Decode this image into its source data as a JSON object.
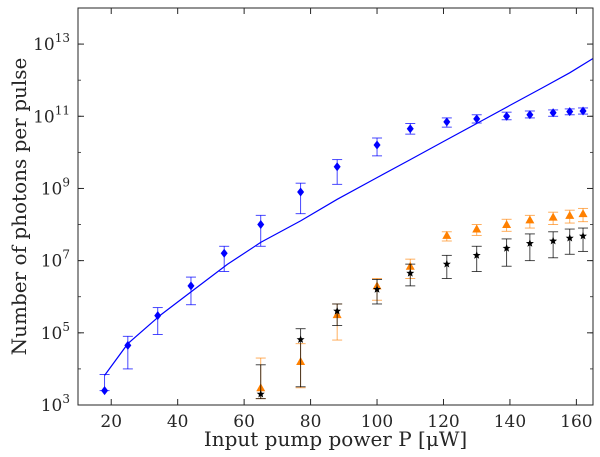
{
  "chart_data": {
    "type": "scatter",
    "title": "",
    "xlabel": "Input pump power P [μW]",
    "ylabel": "Number of photons per pulse",
    "xlim": [
      10,
      165
    ],
    "ylim_log10": [
      3,
      14
    ],
    "y_scale": "log",
    "grid": false,
    "legend": "none",
    "x_ticks": [
      20,
      40,
      60,
      80,
      100,
      120,
      140,
      160
    ],
    "x_tick_labels": [
      "20",
      "40",
      "60",
      "80",
      "100",
      "120",
      "140",
      "160"
    ],
    "y_ticks_log10": [
      3,
      5,
      7,
      9,
      11,
      13
    ],
    "y_tick_labels": [
      {
        "base": "10",
        "exp": "3"
      },
      {
        "base": "10",
        "exp": "5"
      },
      {
        "base": "10",
        "exp": "7"
      },
      {
        "base": "10",
        "exp": "9"
      },
      {
        "base": "10",
        "exp": "11"
      },
      {
        "base": "10",
        "exp": "13"
      }
    ],
    "colors": {
      "blue": "#0000ff",
      "orange": "#ff8000",
      "black": "#000000",
      "axis": "#262626"
    },
    "fit_curve": {
      "color": "#0000ff",
      "points": [
        {
          "x": 18,
          "y": 6600.0
        },
        {
          "x": 25,
          "y": 50000.0
        },
        {
          "x": 35,
          "y": 320000.0
        },
        {
          "x": 45,
          "y": 1600000.0
        },
        {
          "x": 55,
          "y": 7900000.0
        },
        {
          "x": 65,
          "y": 32000000.0
        },
        {
          "x": 77,
          "y": 126000000.0
        },
        {
          "x": 88,
          "y": 500000000.0
        },
        {
          "x": 100,
          "y": 2000000000.0
        },
        {
          "x": 110,
          "y": 6300000000.0
        },
        {
          "x": 120,
          "y": 20000000000.0
        },
        {
          "x": 130,
          "y": 63000000000.0
        },
        {
          "x": 140,
          "y": 200000000000.0
        },
        {
          "x": 150,
          "y": 630000000000.0
        },
        {
          "x": 158,
          "y": 1600000000000.0
        },
        {
          "x": 165,
          "y": 4000000000000.0
        }
      ]
    },
    "series": [
      {
        "marker": "diamond",
        "color": "#0000ff",
        "points": [
          {
            "x": 18,
            "y": 2500.0,
            "lo": 2500.0,
            "hi": 7000.0
          },
          {
            "x": 25,
            "y": 45000.0,
            "lo": 10000.0,
            "hi": 80000.0
          },
          {
            "x": 34,
            "y": 300000.0,
            "lo": 90000.0,
            "hi": 500000.0
          },
          {
            "x": 44,
            "y": 2000000.0,
            "lo": 600000.0,
            "hi": 3500000.0
          },
          {
            "x": 54,
            "y": 16000000.0,
            "lo": 5000000.0,
            "hi": 25000000.0
          },
          {
            "x": 65,
            "y": 100000000.0,
            "lo": 25000000.0,
            "hi": 180000000.0
          },
          {
            "x": 77,
            "y": 800000000.0,
            "lo": 200000000.0,
            "hi": 1400000000.0
          },
          {
            "x": 88,
            "y": 4000000000.0,
            "lo": 1300000000.0,
            "hi": 6300000000.0
          },
          {
            "x": 100,
            "y": 16000000000.0,
            "lo": 8000000000.0,
            "hi": 25000000000.0
          },
          {
            "x": 110,
            "y": 45000000000.0,
            "lo": 32000000000.0,
            "hi": 63000000000.0
          },
          {
            "x": 121,
            "y": 70000000000.0,
            "lo": 50000000000.0,
            "hi": 90000000000.0
          },
          {
            "x": 130,
            "y": 85000000000.0,
            "lo": 65000000000.0,
            "hi": 110000000000.0
          },
          {
            "x": 139,
            "y": 100000000000.0,
            "lo": 80000000000.0,
            "hi": 130000000000.0
          },
          {
            "x": 146,
            "y": 110000000000.0,
            "lo": 90000000000.0,
            "hi": 140000000000.0
          },
          {
            "x": 153,
            "y": 125000000000.0,
            "lo": 100000000000.0,
            "hi": 150000000000.0
          },
          {
            "x": 158,
            "y": 135000000000.0,
            "lo": 110000000000.0,
            "hi": 160000000000.0
          },
          {
            "x": 162,
            "y": 140000000000.0,
            "lo": 115000000000.0,
            "hi": 170000000000.0
          }
        ]
      },
      {
        "marker": "triangle",
        "color": "#ff8000",
        "points": [
          {
            "x": 65,
            "y": 3000.0,
            "lo": 1500.0,
            "hi": 20000.0
          },
          {
            "x": 77,
            "y": 16000.0,
            "lo": 3000.0,
            "hi": 50000.0
          },
          {
            "x": 88,
            "y": 320000.0,
            "lo": 63000.0,
            "hi": 630000.0
          },
          {
            "x": 100,
            "y": 2000000.0,
            "lo": 800000.0,
            "hi": 3200000.0
          },
          {
            "x": 110,
            "y": 7000000.0,
            "lo": 3200000.0,
            "hi": 11000000.0
          },
          {
            "x": 121,
            "y": 50000000.0,
            "lo": 35000000.0,
            "hi": 63000000.0
          },
          {
            "x": 130,
            "y": 75000000.0,
            "lo": 50000000.0,
            "hi": 100000000.0
          },
          {
            "x": 139,
            "y": 100000000.0,
            "lo": 65000000.0,
            "hi": 140000000.0
          },
          {
            "x": 146,
            "y": 135000000.0,
            "lo": 80000000.0,
            "hi": 180000000.0
          },
          {
            "x": 153,
            "y": 160000000.0,
            "lo": 100000000.0,
            "hi": 220000000.0
          },
          {
            "x": 158,
            "y": 180000000.0,
            "lo": 110000000.0,
            "hi": 250000000.0
          },
          {
            "x": 162,
            "y": 200000000.0,
            "lo": 120000000.0,
            "hi": 280000000.0
          }
        ]
      },
      {
        "marker": "star",
        "color": "#000000",
        "points": [
          {
            "x": 65,
            "y": 2000.0,
            "lo": 1500.0,
            "hi": 13000.0
          },
          {
            "x": 77,
            "y": 65000.0,
            "lo": 3200.0,
            "hi": 130000.0
          },
          {
            "x": 88,
            "y": 400000.0,
            "lo": 160000.0,
            "hi": 630000.0
          },
          {
            "x": 100,
            "y": 1600000.0,
            "lo": 630000.0,
            "hi": 3000000.0
          },
          {
            "x": 110,
            "y": 4500000.0,
            "lo": 2000000.0,
            "hi": 8000000.0
          },
          {
            "x": 121,
            "y": 8000000.0,
            "lo": 3200000.0,
            "hi": 14000000.0
          },
          {
            "x": 130,
            "y": 14000000.0,
            "lo": 5000000.0,
            "hi": 25000000.0
          },
          {
            "x": 139,
            "y": 22000000.0,
            "lo": 7000000.0,
            "hi": 40000000.0
          },
          {
            "x": 146,
            "y": 30000000.0,
            "lo": 10000000.0,
            "hi": 55000000.0
          },
          {
            "x": 153,
            "y": 35000000.0,
            "lo": 12000000.0,
            "hi": 63000000.0
          },
          {
            "x": 158,
            "y": 42000000.0,
            "lo": 15000000.0,
            "hi": 75000000.0
          },
          {
            "x": 162,
            "y": 48000000.0,
            "lo": 18000000.0,
            "hi": 80000000.0
          }
        ]
      }
    ]
  }
}
